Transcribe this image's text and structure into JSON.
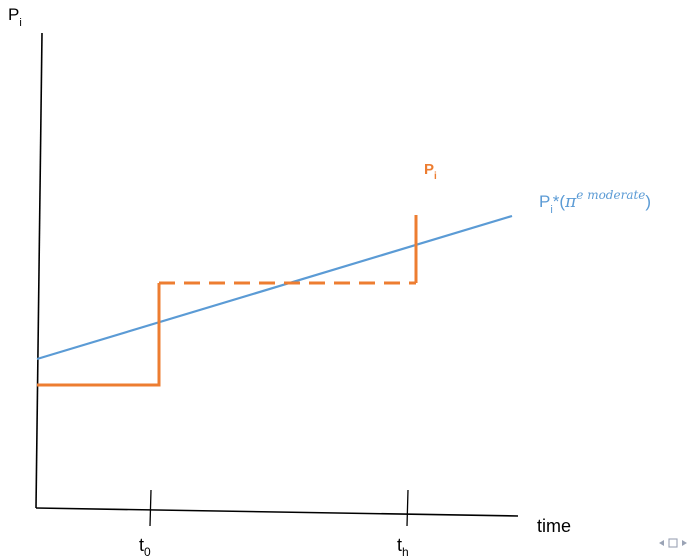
{
  "diagram": {
    "y_axis_label": {
      "main": "P",
      "sub": "i"
    },
    "x_axis_label": "time",
    "ticks": [
      {
        "main": "t",
        "sub": "0"
      },
      {
        "main": "t",
        "sub": "h"
      }
    ],
    "price_label": {
      "main": "P",
      "sub": "i"
    },
    "target_label": {
      "main": "P",
      "sub": "i",
      "star": "*",
      "open": "(",
      "pi": "π",
      "sup": "e moderate",
      "close": ")"
    },
    "colors": {
      "axis": "#000000",
      "price_path": "#ED7D31",
      "target_line": "#5B9BD5",
      "nav": "#9AA3B5"
    }
  },
  "nav": {
    "prev_icon": "left-triangle-icon",
    "box_icon": "frame-box-icon",
    "next_icon": "right-triangle-icon"
  }
}
